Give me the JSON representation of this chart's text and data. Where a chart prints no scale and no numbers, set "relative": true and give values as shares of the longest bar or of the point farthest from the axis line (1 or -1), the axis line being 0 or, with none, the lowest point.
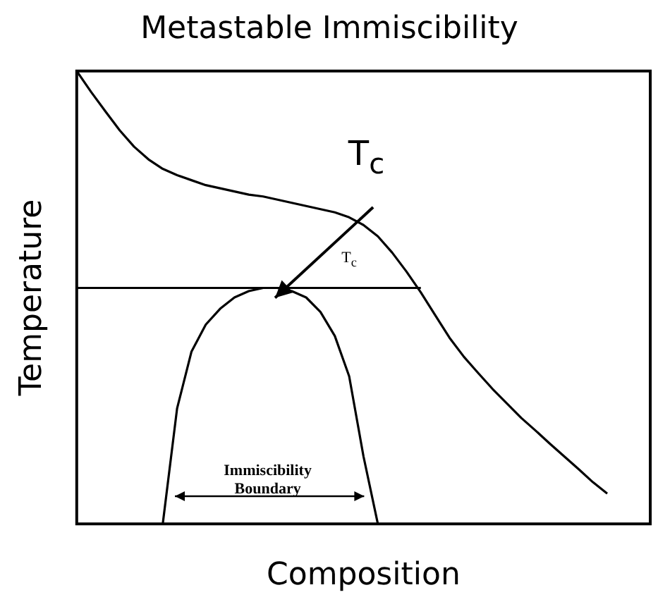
{
  "chart_data": {
    "type": "line",
    "title": "Metastable Immiscibility",
    "xlabel": "Composition",
    "ylabel": "Temperature",
    "relative": true,
    "legend": false,
    "grid": false,
    "marker": "none",
    "line_style": "solid",
    "categories": [
      null,
      null,
      null,
      null,
      null,
      null,
      null,
      null,
      null,
      null,
      null,
      null,
      null,
      null,
      null,
      null,
      null,
      null,
      null,
      null,
      null,
      null,
      null,
      null,
      null,
      null,
      null,
      null,
      null,
      null,
      null,
      null,
      null,
      null,
      null,
      null,
      null,
      null,
      null,
      null,
      null
    ],
    "series": [
      {
        "color": "#000000",
        "values": [
          1.0,
          0.954,
          0.911,
          0.869,
          0.833,
          0.805,
          0.784,
          0.77,
          0.759,
          0.748,
          0.741,
          0.734,
          0.727,
          0.723,
          0.716,
          0.709,
          0.702,
          0.695,
          0.688,
          0.677,
          0.66,
          0.635,
          0.599,
          0.557,
          0.511,
          0.461,
          0.411,
          0.369,
          0.333,
          0.298,
          0.266,
          0.234,
          0.206,
          0.177,
          0.149,
          0.121,
          0.092,
          0.067,
          null,
          null,
          null
        ]
      },
      {
        "color": "#000000",
        "values": [
          0.521,
          0.521,
          0.521,
          0.521,
          0.521,
          0.521,
          0.521,
          0.521,
          0.521,
          0.521,
          0.521,
          0.521,
          0.521,
          0.521,
          0.521,
          0.521,
          0.521,
          0.521,
          0.521,
          0.521,
          0.521,
          0.521,
          0.521,
          0.521,
          0.521,
          null,
          null,
          null,
          null,
          null,
          null,
          null,
          null,
          null,
          null,
          null,
          null,
          null,
          null,
          null,
          null
        ]
      },
      {
        "color": "#000000",
        "values": [
          null,
          null,
          null,
          null,
          null,
          null,
          0.0,
          0.255,
          0.38,
          0.44,
          0.475,
          0.5,
          0.514,
          0.521,
          0.521,
          0.514,
          0.5,
          0.468,
          0.415,
          0.326,
          0.149,
          0.0,
          null,
          null,
          null,
          null,
          null,
          null,
          null,
          null,
          null,
          null,
          null,
          null,
          null,
          null,
          null,
          null,
          null,
          null,
          null
        ]
      }
    ],
    "annotations": [
      "T$_{c}$",
      "T$_{c}$",
      "Immiscibility Boundary"
    ]
  }
}
